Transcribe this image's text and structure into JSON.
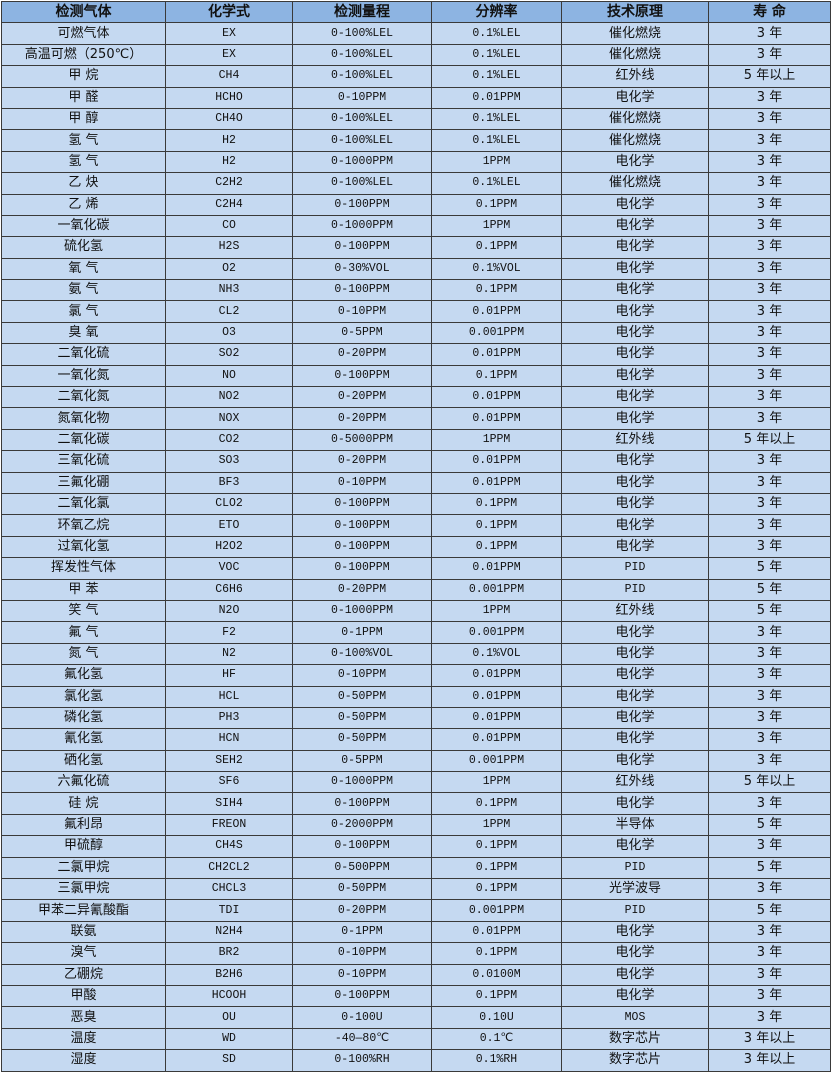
{
  "colors": {
    "header_bg": "#8db4e2",
    "row_bg": "#c5d9f1",
    "border": "#3a3a3a"
  },
  "headers": [
    "检测气体",
    "化学式",
    "检测量程",
    "分辨率",
    "技术原理",
    "寿 命"
  ],
  "rows": [
    [
      "可燃气体",
      "EX",
      "0-100%LEL",
      "0.1%LEL",
      "催化燃烧",
      "3 年"
    ],
    [
      "高温可燃（250℃）",
      "EX",
      "0-100%LEL",
      "0.1%LEL",
      "催化燃烧",
      "3 年"
    ],
    [
      "甲 烷",
      "CH4",
      "0-100%LEL",
      "0.1%LEL",
      "红外线",
      "5 年以上"
    ],
    [
      "甲 醛",
      "HCHO",
      "0-10PPM",
      "0.01PPM",
      "电化学",
      "3 年"
    ],
    [
      "甲 醇",
      "CH4O",
      "0-100%LEL",
      "0.1%LEL",
      "催化燃烧",
      "3 年"
    ],
    [
      "氢 气",
      "H2",
      "0-100%LEL",
      "0.1%LEL",
      "催化燃烧",
      "3 年"
    ],
    [
      "氢 气",
      "H2",
      "0-1000PPM",
      "1PPM",
      "电化学",
      "3 年"
    ],
    [
      "乙 炔",
      "C2H2",
      "0-100%LEL",
      "0.1%LEL",
      "催化燃烧",
      "3 年"
    ],
    [
      "乙 烯",
      "C2H4",
      "0-100PPM",
      "0.1PPM",
      "电化学",
      "3 年"
    ],
    [
      "一氧化碳",
      "CO",
      "0-1000PPM",
      "1PPM",
      "电化学",
      "3 年"
    ],
    [
      "硫化氢",
      "H2S",
      "0-100PPM",
      "0.1PPM",
      "电化学",
      "3 年"
    ],
    [
      "氧 气",
      "O2",
      "0-30%VOL",
      "0.1%VOL",
      "电化学",
      "3 年"
    ],
    [
      "氨 气",
      "NH3",
      "0-100PPM",
      "0.1PPM",
      "电化学",
      "3 年"
    ],
    [
      "氯 气",
      "CL2",
      "0-10PPM",
      "0.01PPM",
      "电化学",
      "3 年"
    ],
    [
      "臭 氧",
      "O3",
      "0-5PPM",
      "0.001PPM",
      "电化学",
      "3 年"
    ],
    [
      "二氧化硫",
      "SO2",
      "0-20PPM",
      "0.01PPM",
      "电化学",
      "3 年"
    ],
    [
      "一氧化氮",
      "NO",
      "0-100PPM",
      "0.1PPM",
      "电化学",
      "3 年"
    ],
    [
      "二氧化氮",
      "NO2",
      "0-20PPM",
      "0.01PPM",
      "电化学",
      "3 年"
    ],
    [
      "氮氧化物",
      "NOX",
      "0-20PPM",
      "0.01PPM",
      "电化学",
      "3 年"
    ],
    [
      "二氧化碳",
      "CO2",
      "0-5000PPM",
      "1PPM",
      "红外线",
      "5 年以上"
    ],
    [
      "三氧化硫",
      "SO3",
      "0-20PPM",
      "0.01PPM",
      "电化学",
      "3 年"
    ],
    [
      "三氟化硼",
      "BF3",
      "0-10PPM",
      "0.01PPM",
      "电化学",
      "3 年"
    ],
    [
      "二氧化氯",
      "CLO2",
      "0-100PPM",
      "0.1PPM",
      "电化学",
      "3 年"
    ],
    [
      "环氧乙烷",
      "ETO",
      "0-100PPM",
      "0.1PPM",
      "电化学",
      "3 年"
    ],
    [
      "过氧化氢",
      "H2O2",
      "0-100PPM",
      "0.1PPM",
      "电化学",
      "3 年"
    ],
    [
      "挥发性气体",
      "VOC",
      "0-100PPM",
      "0.01PPM",
      "PID",
      "5 年"
    ],
    [
      "甲 苯",
      "C6H6",
      "0-20PPM",
      "0.001PPM",
      "PID",
      "5 年"
    ],
    [
      "笑 气",
      "N2O",
      "0-1000PPM",
      "1PPM",
      "红外线",
      "5 年"
    ],
    [
      "氟 气",
      "F2",
      "0-1PPM",
      "0.001PPM",
      "电化学",
      "3 年"
    ],
    [
      "氮 气",
      "N2",
      "0-100%VOL",
      "0.1%VOL",
      "电化学",
      "3 年"
    ],
    [
      "氟化氢",
      "HF",
      "0-10PPM",
      "0.01PPM",
      "电化学",
      "3 年"
    ],
    [
      "氯化氢",
      "HCL",
      "0-50PPM",
      "0.01PPM",
      "电化学",
      "3 年"
    ],
    [
      "磷化氢",
      "PH3",
      "0-50PPM",
      "0.01PPM",
      "电化学",
      "3 年"
    ],
    [
      "氰化氢",
      "HCN",
      "0-50PPM",
      "0.01PPM",
      "电化学",
      "3 年"
    ],
    [
      "硒化氢",
      "SEH2",
      "0-5PPM",
      "0.001PPM",
      "电化学",
      "3 年"
    ],
    [
      "六氟化硫",
      "SF6",
      "0-1000PPM",
      "1PPM",
      "红外线",
      "5 年以上"
    ],
    [
      "硅 烷",
      "SIH4",
      "0-100PPM",
      "0.1PPM",
      "电化学",
      "3 年"
    ],
    [
      "氟利昂",
      "FREON",
      "0-2000PPM",
      "1PPM",
      "半导体",
      "5 年"
    ],
    [
      "甲硫醇",
      "CH4S",
      "0-100PPM",
      "0.1PPM",
      "电化学",
      "3 年"
    ],
    [
      "二氯甲烷",
      "CH2CL2",
      "0-500PPM",
      "0.1PPM",
      "PID",
      "5 年"
    ],
    [
      "三氯甲烷",
      "CHCL3",
      "0-50PPM",
      "0.1PPM",
      "光学波导",
      "3 年"
    ],
    [
      "甲苯二异氰酸酯",
      "TDI",
      "0-20PPM",
      "0.001PPM",
      "PID",
      "5 年"
    ],
    [
      "联氨",
      "N2H4",
      "0-1PPM",
      "0.01PPM",
      "电化学",
      "3 年"
    ],
    [
      "溴气",
      "BR2",
      "0-10PPM",
      "0.1PPM",
      "电化学",
      "3 年"
    ],
    [
      "乙硼烷",
      "B2H6",
      "0-10PPM",
      "0.0100M",
      "电化学",
      "3 年"
    ],
    [
      "甲酸",
      "HCOOH",
      "0-100PPM",
      "0.1PPM",
      "电化学",
      "3 年"
    ],
    [
      "恶臭",
      "OU",
      "0-100U",
      "0.10U",
      "MOS",
      "3 年"
    ],
    [
      "温度",
      "WD",
      "-40—80℃",
      "0.1℃",
      "数字芯片",
      "3 年以上"
    ],
    [
      "湿度",
      "SD",
      "0-100%RH",
      "0.1%RH",
      "数字芯片",
      "3 年以上"
    ]
  ]
}
